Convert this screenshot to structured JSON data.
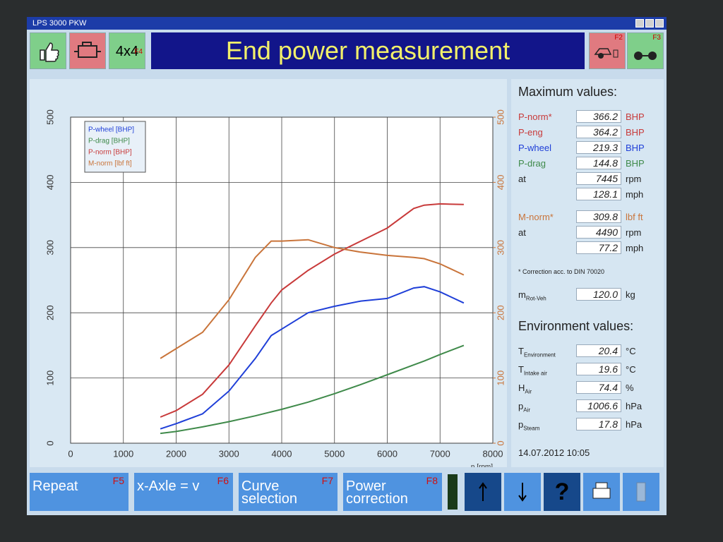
{
  "window_title": "LPS 3000 PKW",
  "header": {
    "title": "End power measurement",
    "button_4x4": "4x4",
    "key_4x4": "F4",
    "key_left": "F2",
    "key_right": "F3"
  },
  "chart_data": {
    "type": "line",
    "x_label": "n [rpm]",
    "x": [
      1700,
      2000,
      2500,
      3000,
      3500,
      3800,
      4000,
      4500,
      5000,
      5500,
      6000,
      6500,
      6700,
      7000,
      7450
    ],
    "series": [
      {
        "name": "P-wheel [BHP]",
        "color": "#1f3fd8",
        "values": [
          22,
          30,
          45,
          80,
          130,
          165,
          175,
          200,
          210,
          218,
          222,
          238,
          240,
          232,
          215
        ]
      },
      {
        "name": "P-drag [BHP]",
        "color": "#3f8a4a",
        "values": [
          15,
          18,
          25,
          33,
          42,
          48,
          52,
          63,
          76,
          90,
          105,
          120,
          126,
          136,
          150
        ]
      },
      {
        "name": "P-norm [BHP]",
        "color": "#c83a3a",
        "values": [
          40,
          50,
          75,
          120,
          180,
          215,
          235,
          265,
          290,
          310,
          330,
          360,
          365,
          367,
          366
        ]
      },
      {
        "name": "M-norm [lbf ft]",
        "color": "#c9743a",
        "axis": "y2",
        "values": [
          130,
          145,
          170,
          220,
          285,
          310,
          310,
          312,
          300,
          293,
          288,
          285,
          283,
          275,
          258
        ]
      }
    ],
    "xlim": [
      0,
      8000
    ],
    "xticks": [
      0,
      1000,
      2000,
      3000,
      4000,
      5000,
      6000,
      7000,
      8000
    ],
    "ylim": [
      0,
      500
    ],
    "yticks": [
      0,
      100,
      200,
      300,
      400,
      500
    ],
    "y2lim": [
      0,
      500
    ],
    "y2ticks": [
      0,
      100,
      200,
      300,
      400,
      500
    ],
    "grid": true,
    "legend": "top-left"
  },
  "max_panel": {
    "title": "Maximum values:",
    "rows": [
      {
        "label": {
          "main": "P-norm*"
        },
        "value": "366.2",
        "unit": "BHP",
        "color": "#c83a3a"
      },
      {
        "label": {
          "main": "P-eng"
        },
        "value": "364.2",
        "unit": "BHP",
        "color": "#c83a3a"
      },
      {
        "label": {
          "main": "P-wheel"
        },
        "value": "219.3",
        "unit": "BHP",
        "color": "#1f3fd8"
      },
      {
        "label": {
          "main": "P-drag"
        },
        "value": "144.8",
        "unit": "BHP",
        "color": "#3f8a4a"
      },
      {
        "label": {
          "main": "at"
        },
        "value": "7445",
        "unit": "rpm"
      },
      {
        "value": "128.1",
        "unit": "mph"
      },
      {
        "label": {
          "main": "M-norm*"
        },
        "value": "309.8",
        "unit": "lbf ft",
        "color": "#c9743a"
      },
      {
        "label": {
          "main": "at"
        },
        "value": "4490",
        "unit": "rpm"
      },
      {
        "value": "77.2",
        "unit": "mph"
      }
    ],
    "note": "* Correction acc. to DIN 70020",
    "mass": {
      "label": {
        "main": "m",
        "sub": "Rot-Veh"
      },
      "value": "120.0",
      "unit": "kg"
    }
  },
  "env_panel": {
    "title": "Environment values:",
    "rows": [
      {
        "label": {
          "main": "T",
          "sub": "Environment"
        },
        "value": "20.4",
        "unit": "°C"
      },
      {
        "label": {
          "main": "T",
          "sub": "Intake air"
        },
        "value": "19.6",
        "unit": "°C"
      },
      {
        "label": {
          "main": "H",
          "sub": "Air"
        },
        "value": "74.4",
        "unit": "%"
      },
      {
        "label": {
          "main": "p",
          "sub": "Air"
        },
        "value": "1006.6",
        "unit": "hPa"
      },
      {
        "label": {
          "main": "p",
          "sub": "Steam"
        },
        "value": "17.8",
        "unit": "hPa"
      }
    ],
    "datetime": "14.07.2012   10:05"
  },
  "footer": {
    "buttons": [
      {
        "label": "Repeat",
        "key": "F5"
      },
      {
        "label": "x-Axle = v",
        "key": "F6"
      },
      {
        "label": "Curve selection",
        "key": "F7"
      },
      {
        "label": "Power correction",
        "key": "F8"
      }
    ],
    "help": "?"
  }
}
